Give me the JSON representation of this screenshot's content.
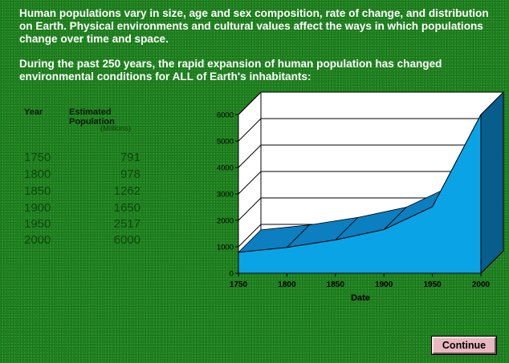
{
  "intro": {
    "paragraph1": "Human populations vary in size, age and sex composition, rate of change, and distribution on Earth.  Physical environments and cultural values affect the ways in which populations change over time and space.",
    "paragraph2": "During the past 250 years, the rapid expansion of human population has changed environmental conditions for ALL of  Earth's inhabitants:"
  },
  "table": {
    "col_year": "Year",
    "col_population": "Estimated Population",
    "unit": "(Millions)",
    "rows": [
      {
        "year": "1750",
        "population": "791"
      },
      {
        "year": "1800",
        "population": "978"
      },
      {
        "year": "1850",
        "population": "1262"
      },
      {
        "year": "1900",
        "population": "1650"
      },
      {
        "year": "1950",
        "population": "2517"
      },
      {
        "year": "2000",
        "population": "6000"
      }
    ]
  },
  "chart_data": {
    "type": "area",
    "title": "",
    "xlabel": "Date",
    "ylabel": "",
    "x": [
      1750,
      1800,
      1850,
      1900,
      1950,
      2000
    ],
    "series": [
      {
        "values": [
          791,
          978,
          1262,
          1650,
          2517,
          6000
        ]
      }
    ],
    "x_ticks": [
      "1750",
      "1800",
      "1850",
      "1900",
      "1950",
      "2000"
    ],
    "y_ticks": [
      "0",
      "1000",
      "2000",
      "3000",
      "4000",
      "5000",
      "6000"
    ],
    "xlim": [
      1750,
      2000
    ],
    "ylim": [
      0,
      6000
    ],
    "grid": true,
    "three_d": true,
    "colors": {
      "area_front": "#0aa3e6",
      "area_top": "#0b7fbf",
      "area_side": "#075d8c",
      "outline": "#000000",
      "wall": "#ffffff"
    }
  },
  "buttons": {
    "continue_label": "Continue"
  }
}
